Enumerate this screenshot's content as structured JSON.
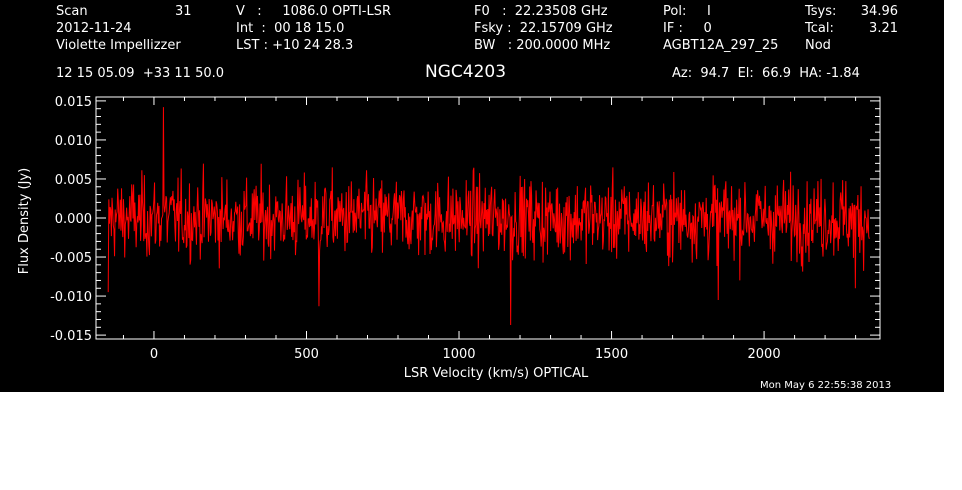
{
  "header": {
    "scan_label": "Scan",
    "scan_value": "31",
    "date": "2012-11-24",
    "observer": "Violette Impellizzer",
    "coords": "12 15 05.09  +33 11 50.0",
    "v_line": "V   :     1086.0 OPTI-LSR",
    "int_line": "Int  :  00 18 15.0",
    "lst_line": "LST : +10 24 28.3",
    "f0_line": "F0   :  22.23508 GHz",
    "fsky_line": "Fsky :  22.15709 GHz",
    "bw_line": "BW   : 200.0000 MHz",
    "pol_line": "Pol:     I",
    "if_line": "IF :     0",
    "project": "AGBT12A_297_25",
    "tsys_label": "Tsys:",
    "tsys_value": "34.96",
    "tcal_label": "Tcal:",
    "tcal_value": "3.21",
    "mode": "Nod",
    "azel": "Az:  94.7  El:  66.9  HA: -1.84"
  },
  "timestamp": "Mon May  6 22:55:38 2013",
  "chart_data": {
    "type": "line",
    "title": "NGC4203",
    "xlabel": "LSR Velocity (km/s) OPTICAL",
    "ylabel": "Flux Density (Jy)",
    "xlim": [
      -190,
      2380
    ],
    "ylim": [
      -0.0155,
      0.0155
    ],
    "xticks": [
      0,
      500,
      1000,
      1500,
      2000
    ],
    "xtick_labels": [
      "0",
      "500",
      "1000",
      "1500",
      "2000"
    ],
    "yticks": [
      -0.015,
      -0.01,
      -0.005,
      0.0,
      0.005,
      0.01,
      0.015
    ],
    "ytick_labels": [
      "-0.015",
      "-0.010",
      "-0.005",
      "0.000",
      "0.005",
      "0.010",
      "0.015"
    ],
    "series": [
      {
        "color": "#ff0000",
        "x_range": [
          -150,
          2345
        ],
        "n_points": 1200,
        "noise_rms": 0.0035,
        "extremes": [
          {
            "x": -150,
            "y": 0.01
          },
          {
            "x": -160,
            "y": -0.0095
          },
          {
            "x": 30,
            "y": 0.0142
          },
          {
            "x": 1170,
            "y": -0.0137
          },
          {
            "x": 540,
            "y": -0.0113
          },
          {
            "x": 1850,
            "y": -0.0105
          },
          {
            "x": 2300,
            "y": -0.009
          }
        ]
      }
    ],
    "background": "#000000",
    "axis_color": "#ffffff"
  }
}
